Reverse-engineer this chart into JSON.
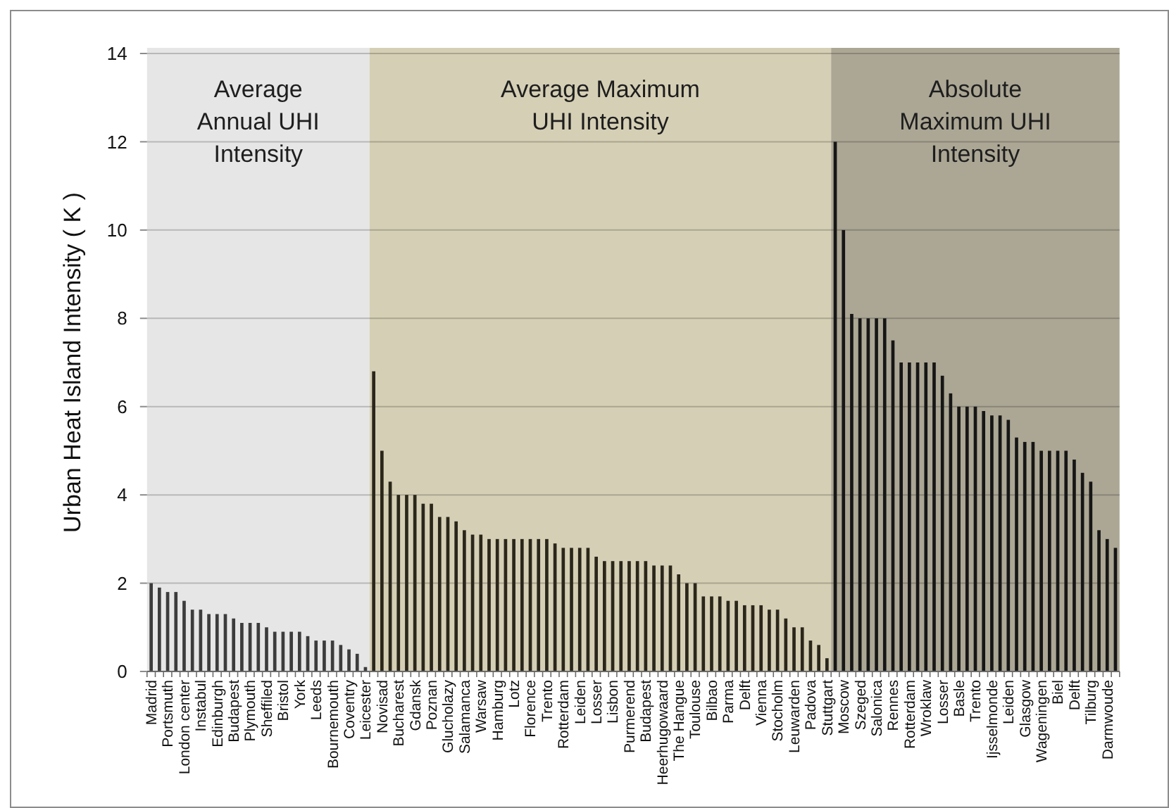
{
  "chart_data": {
    "type": "bar",
    "ylabel": "Urban Heat Island Intensity ( K )",
    "categories": [
      "Madrid",
      null,
      "Portsmuth",
      null,
      "London center",
      null,
      "Instabul",
      null,
      "Edinburgh",
      null,
      "Budapest",
      null,
      "Plymouth",
      null,
      "Sheffiled",
      null,
      "Bristol",
      null,
      "York",
      null,
      "Leeds",
      null,
      "Bournemouth",
      null,
      "Coventry",
      null,
      "Leicester",
      null,
      "Novisad",
      null,
      "Bucharest",
      null,
      "Gdansk",
      null,
      "Poznan",
      null,
      "Glucholazy",
      null,
      "Salamanca",
      null,
      "Warsaw",
      null,
      "Hamburg",
      null,
      "Lotz",
      null,
      "Florence",
      null,
      "Trento",
      null,
      "Rotterdam",
      null,
      "Leiden",
      null,
      "Losser",
      null,
      "Lisbon",
      null,
      "Purmerend",
      null,
      "Budapest",
      null,
      "Heerhugowaard",
      null,
      "The Hangue",
      null,
      "Toulouse",
      null,
      "Bilbao",
      null,
      "Parma",
      null,
      "Delft",
      null,
      "Vienna",
      null,
      "Stocholm",
      null,
      "Leuwarden",
      null,
      "Padova",
      null,
      "Stuttgart",
      null,
      "Moscow",
      null,
      "Szeged",
      null,
      "Salonica",
      null,
      "Rennes",
      null,
      "Rotterdam",
      null,
      "Wroklaw",
      null,
      "Losser",
      null,
      "Basle",
      null,
      "Trento",
      null,
      "Ijsselmonde",
      null,
      "Leiden",
      null,
      "Glasgow",
      null,
      "Wageningen",
      null,
      "Biel",
      null,
      "Delft",
      null,
      "Tilburg",
      null,
      "Darmwoude",
      null
    ],
    "values": [
      2.0,
      1.9,
      1.8,
      1.8,
      1.6,
      1.4,
      1.4,
      1.3,
      1.3,
      1.3,
      1.2,
      1.1,
      1.1,
      1.1,
      1.0,
      0.9,
      0.9,
      0.9,
      0.9,
      0.8,
      0.7,
      0.7,
      0.7,
      0.6,
      0.5,
      0.4,
      0.1,
      6.8,
      5.0,
      4.3,
      4.0,
      4.0,
      4.0,
      3.8,
      3.8,
      3.5,
      3.5,
      3.4,
      3.2,
      3.1,
      3.1,
      3.0,
      3.0,
      3.0,
      3.0,
      3.0,
      3.0,
      3.0,
      3.0,
      2.9,
      2.8,
      2.8,
      2.8,
      2.8,
      2.6,
      2.5,
      2.5,
      2.5,
      2.5,
      2.5,
      2.5,
      2.4,
      2.4,
      2.4,
      2.2,
      2.0,
      2.0,
      1.7,
      1.7,
      1.7,
      1.6,
      1.6,
      1.5,
      1.5,
      1.5,
      1.4,
      1.4,
      1.2,
      1.0,
      1.0,
      0.7,
      0.6,
      0.3,
      12.0,
      10.0,
      8.1,
      8.0,
      8.0,
      8.0,
      8.0,
      7.5,
      7.0,
      7.0,
      7.0,
      7.0,
      7.0,
      6.7,
      6.3,
      6.0,
      6.0,
      6.0,
      5.9,
      5.8,
      5.8,
      5.7,
      5.3,
      5.2,
      5.2,
      5.0,
      5.0,
      5.0,
      5.0,
      4.8,
      4.5,
      4.3,
      3.2,
      3.0,
      2.8
    ],
    "colors": [
      "#3c3c3c",
      "#3c3c3c",
      "#3c3c3c",
      "#3c3c3c",
      "#3c3c3c",
      "#3c3c3c",
      "#3c3c3c",
      "#3c3c3c",
      "#3c3c3c",
      "#3c3c3c",
      "#3c3c3c",
      "#3c3c3c",
      "#3c3c3c",
      "#3c3c3c",
      "#3c3c3c",
      "#3c3c3c",
      "#3c3c3c",
      "#3c3c3c",
      "#3c3c3c",
      "#3c3c3c",
      "#3c3c3c",
      "#3c3c3c",
      "#3c3c3c",
      "#3c3c3c",
      "#3c3c3c",
      "#3c3c3c",
      "#3c3c3c",
      "#2a261a",
      "#2a261a",
      "#2a261a",
      "#2a261a",
      "#2a261a",
      "#2a261a",
      "#2a261a",
      "#2a261a",
      "#2a261a",
      "#2a261a",
      "#2a261a",
      "#2a261a",
      "#2a261a",
      "#2a261a",
      "#2a261a",
      "#2a261a",
      "#2a261a",
      "#2a261a",
      "#2a261a",
      "#2a261a",
      "#2a261a",
      "#2a261a",
      "#2a261a",
      "#2a261a",
      "#2a261a",
      "#2a261a",
      "#2a261a",
      "#2a261a",
      "#2a261a",
      "#2a261a",
      "#2a261a",
      "#2a261a",
      "#2a261a",
      "#2a261a",
      "#2a261a",
      "#2a261a",
      "#2a261a",
      "#2a261a",
      "#2a261a",
      "#2a261a",
      "#2a261a",
      "#2a261a",
      "#2a261a",
      "#2a261a",
      "#2a261a",
      "#2a261a",
      "#2a261a",
      "#2a261a",
      "#2a261a",
      "#2a261a",
      "#2a261a",
      "#2a261a",
      "#2a261a",
      "#2a261a",
      "#2a261a",
      "#2a261a",
      "#161616",
      "#161616",
      "#161616",
      "#161616",
      "#161616",
      "#161616",
      "#161616",
      "#161616",
      "#161616",
      "#161616",
      "#161616",
      "#161616",
      "#161616",
      "#161616",
      "#161616",
      "#161616",
      "#161616",
      "#161616",
      "#161616",
      "#161616",
      "#161616",
      "#161616",
      "#161616",
      "#161616",
      "#161616",
      "#161616",
      "#161616",
      "#161616",
      "#161616",
      "#161616",
      "#161616",
      "#161616",
      "#161616",
      "#161616",
      "#161616"
    ],
    "ylim": [
      0,
      14
    ],
    "yticks": [
      0,
      2,
      4,
      6,
      8,
      10,
      12,
      14
    ],
    "grid": "y",
    "bands": [
      {
        "axis": "x",
        "from": "Madrid",
        "to": "Leicester",
        "label": "Average\nAnnual UHI\nIntensity",
        "color": "#e6e6e6"
      }
    ],
    "annotations": [
      "Average Maximum\nUHI Intensity",
      "Absolute\nMaximum UHI\nIntensity"
    ]
  }
}
